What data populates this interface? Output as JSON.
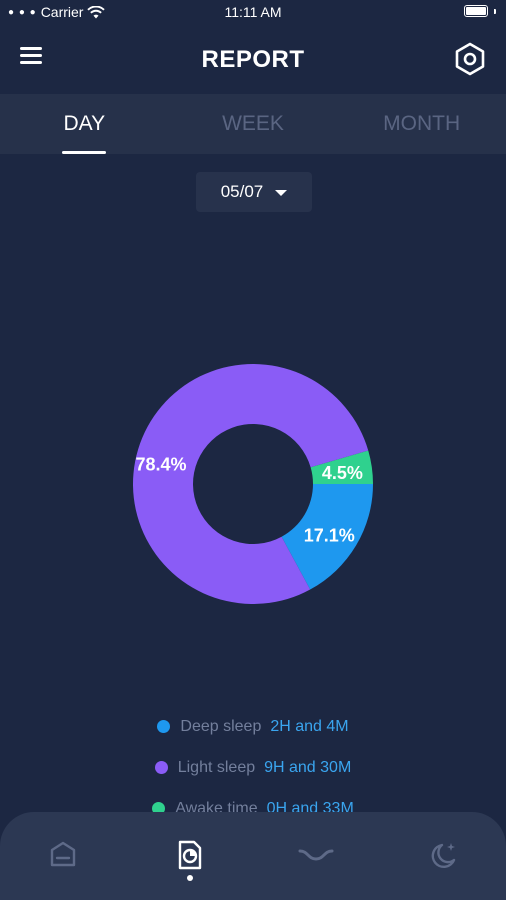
{
  "status_bar": {
    "carrier": "Carrier",
    "time": "11:11 AM",
    "icons": [
      "signal-dots-icon",
      "wifi-icon",
      "battery-icon"
    ]
  },
  "header": {
    "title": "REPORT",
    "menu_icon": "hamburger-menu-icon",
    "settings_icon": "settings-hexagon-icon"
  },
  "tabs": [
    {
      "label": "DAY",
      "active": true
    },
    {
      "label": "WEEK",
      "active": false
    },
    {
      "label": "MONTH",
      "active": false
    }
  ],
  "date_picker": {
    "value": "05/07",
    "icon": "caret-down-icon"
  },
  "colors": {
    "background": "#1c2742",
    "deep_sleep": "#1e98ef",
    "light_sleep": "#8a5cf6",
    "awake": "#2fd18e",
    "value_text": "#3aa5ef"
  },
  "chart_data": {
    "type": "pie",
    "slices": [
      {
        "label": "Deep sleep",
        "value": 17.1,
        "display": "17.1%"
      },
      {
        "label": "Awake time",
        "value": 4.5,
        "display": "4.5%"
      },
      {
        "label": "Light sleep",
        "value": 78.4,
        "display": "78.4%"
      }
    ]
  },
  "legend": [
    {
      "label": "Deep sleep",
      "value": "2H and 4M",
      "color": "#1e98ef"
    },
    {
      "label": "Light sleep",
      "value": "9H and 30M",
      "color": "#8a5cf6"
    },
    {
      "label": "Awake time",
      "value": "0H and 33M",
      "color": "#2fd18e"
    }
  ],
  "bottom_nav": [
    {
      "name": "home",
      "icon": "home-icon",
      "active": false
    },
    {
      "name": "report",
      "icon": "report-document-icon",
      "active": true
    },
    {
      "name": "sleep-curve",
      "icon": "sleep-curve-icon",
      "active": false
    },
    {
      "name": "night",
      "icon": "moon-stars-icon",
      "active": false
    }
  ]
}
